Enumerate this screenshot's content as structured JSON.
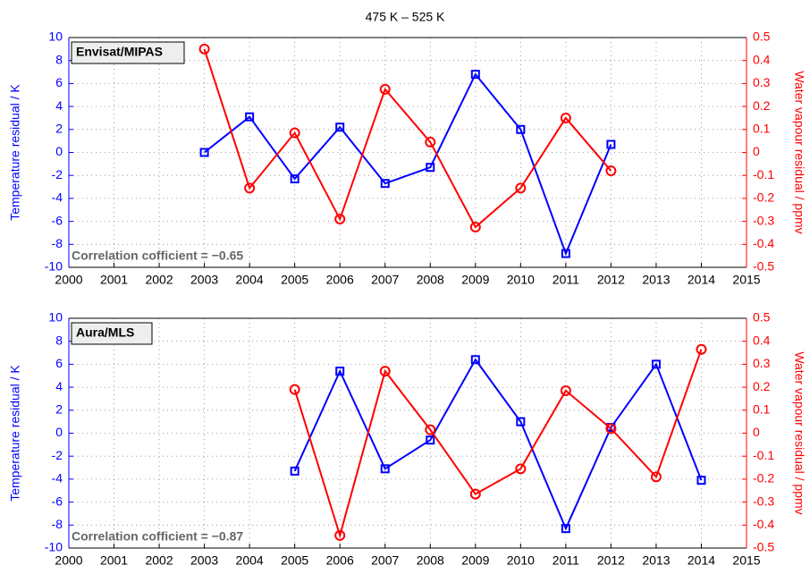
{
  "title": "475 K – 525 K",
  "chart_data": [
    {
      "type": "line",
      "label": "Envisat/MIPAS",
      "annotation": "Correlation cofficient = −0.65",
      "y_label": "Temperature residual / K",
      "y2_label": "Water vapour residual / ppmv",
      "x": [
        2003,
        2004,
        2005,
        2006,
        2007,
        2008,
        2009,
        2010,
        2011,
        2012
      ],
      "xlim": [
        2000,
        2015
      ],
      "xticks": [
        2000,
        2001,
        2002,
        2003,
        2004,
        2005,
        2006,
        2007,
        2008,
        2009,
        2010,
        2011,
        2012,
        2013,
        2014,
        2015
      ],
      "ylim": [
        -10,
        10
      ],
      "yticks": [
        -10,
        -8,
        -6,
        -4,
        -2,
        0,
        2,
        4,
        6,
        8,
        10
      ],
      "y2lim": [
        -0.5,
        0.5
      ],
      "y2ticks": [
        -0.5,
        -0.4,
        -0.3,
        -0.2,
        -0.1,
        0,
        0.1,
        0.2,
        0.3,
        0.4,
        0.5
      ],
      "grid": true,
      "series": [
        {
          "color": "#0000ff",
          "marker": "square",
          "values": [
            0,
            3.1,
            -2.3,
            2.2,
            -2.7,
            -1.3,
            6.8,
            2.0,
            -8.8,
            0.7
          ]
        },
        {
          "color": "#ff0000",
          "marker": "circle",
          "axis": "y2",
          "values": [
            0.45,
            -0.155,
            0.085,
            -0.29,
            0.275,
            0.045,
            -0.325,
            -0.155,
            0.15,
            -0.08
          ]
        }
      ]
    },
    {
      "type": "line",
      "label": "Aura/MLS",
      "annotation": "Correlation cofficient = −0.87",
      "y_label": "Temperature residual / K",
      "y2_label": "Water vapour residual / ppmv",
      "x": [
        2005,
        2006,
        2007,
        2008,
        2009,
        2010,
        2011,
        2012,
        2013,
        2014
      ],
      "xlim": [
        2000,
        2015
      ],
      "xticks": [
        2000,
        2001,
        2002,
        2003,
        2004,
        2005,
        2006,
        2007,
        2008,
        2009,
        2010,
        2011,
        2012,
        2013,
        2014,
        2015
      ],
      "ylim": [
        -10,
        10
      ],
      "yticks": [
        -10,
        -8,
        -6,
        -4,
        -2,
        0,
        2,
        4,
        6,
        8,
        10
      ],
      "y2lim": [
        -0.5,
        0.5
      ],
      "y2ticks": [
        -0.5,
        -0.4,
        -0.3,
        -0.2,
        -0.1,
        0,
        0.1,
        0.2,
        0.3,
        0.4,
        0.5
      ],
      "grid": true,
      "series": [
        {
          "color": "#0000ff",
          "marker": "square",
          "values": [
            -3.3,
            5.4,
            -3.1,
            -0.6,
            6.4,
            1.0,
            -8.3,
            0.5,
            6.0,
            -4.1
          ]
        },
        {
          "color": "#ff0000",
          "marker": "circle",
          "axis": "y2",
          "values": [
            0.19,
            -0.445,
            0.27,
            0.015,
            -0.265,
            -0.155,
            0.185,
            0.02,
            -0.19,
            0.365
          ]
        }
      ]
    }
  ]
}
